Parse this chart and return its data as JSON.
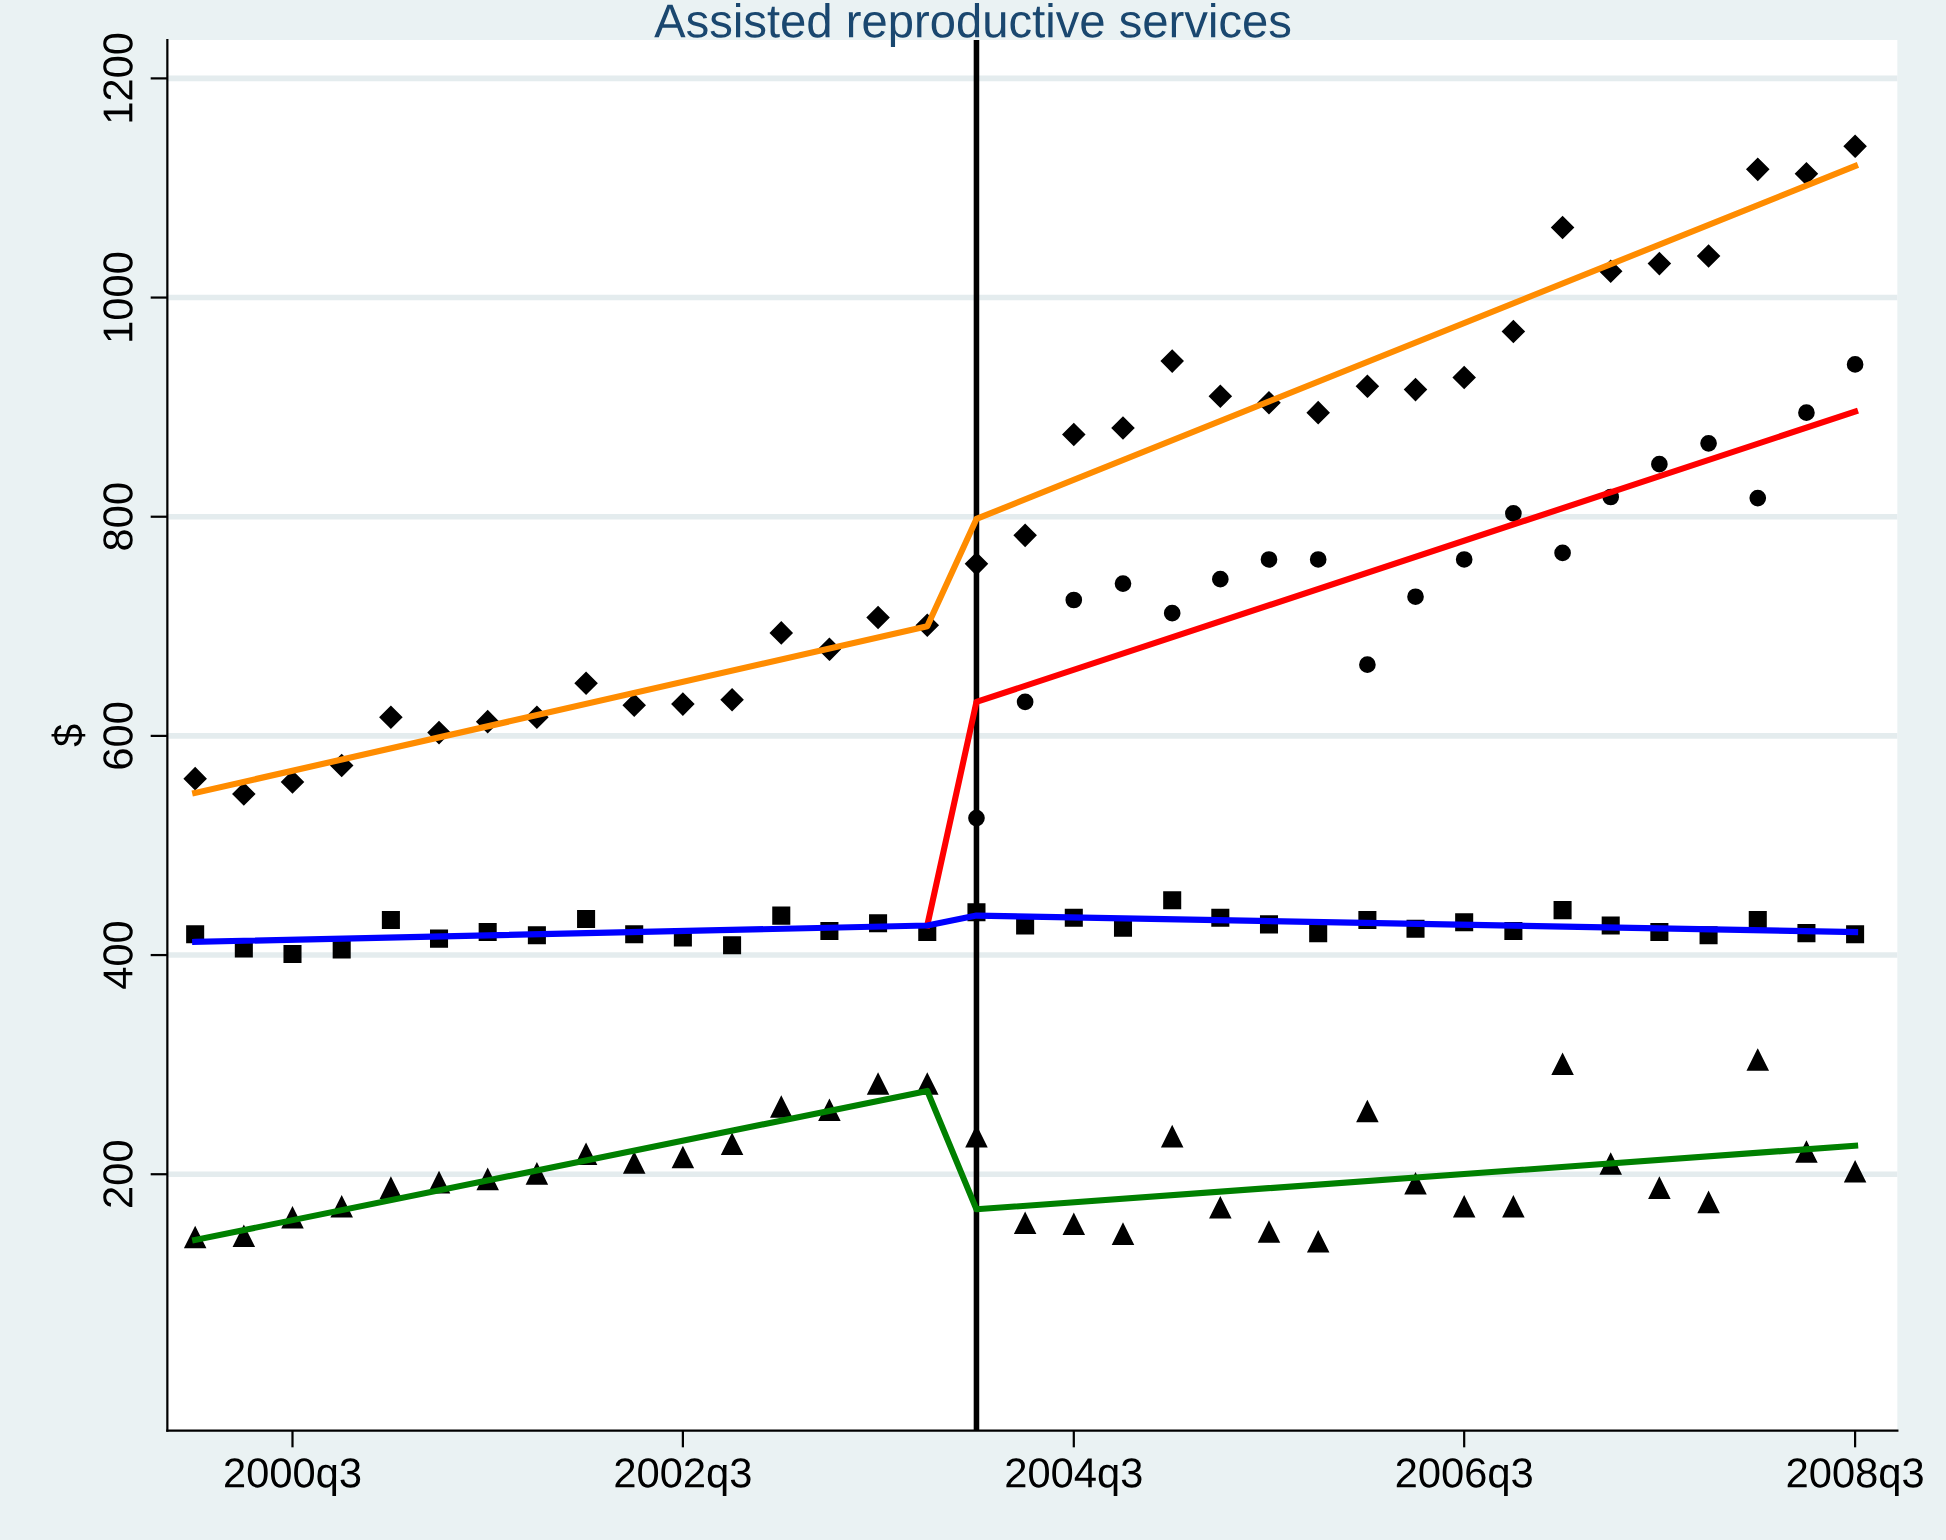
{
  "chart_data": {
    "type": "scatter",
    "title": "Assisted reproductive services",
    "ylabel": "$",
    "xlim": [
      "1999-11-10",
      "2008-09-18"
    ],
    "ylim": [
      -34,
      1235
    ],
    "xticks": [
      {
        "value": "2000-07",
        "label": "2000q3"
      },
      {
        "value": "2002-07",
        "label": "2002q3"
      },
      {
        "value": "2004-07",
        "label": "2004q3"
      },
      {
        "value": "2006-07",
        "label": "2006q3"
      },
      {
        "value": "2008-07",
        "label": "2008q3"
      }
    ],
    "yticks": [
      200,
      400,
      600,
      800,
      1000,
      1200
    ],
    "grid": "y",
    "legend": false,
    "ref_lines": [
      {
        "axis": "x",
        "value": "2004-01",
        "color": "#000000"
      }
    ],
    "x": [
      "2000-01",
      "2000-04",
      "2000-07",
      "2000-10",
      "2001-01",
      "2001-04",
      "2001-07",
      "2001-10",
      "2002-01",
      "2002-04",
      "2002-07",
      "2002-10",
      "2003-01",
      "2003-04",
      "2003-07",
      "2003-10",
      "2004-01",
      "2004-04",
      "2004-07",
      "2004-10",
      "2005-01",
      "2005-04",
      "2005-07",
      "2005-10",
      "2006-01",
      "2006-04",
      "2006-07",
      "2006-10",
      "2007-01",
      "2007-04",
      "2007-07",
      "2007-10",
      "2008-01",
      "2008-04",
      "2008-07"
    ],
    "series": [
      {
        "marker": "diamond",
        "color": "#000000",
        "values": [
          561,
          547,
          558,
          573,
          617,
          603,
          613,
          617,
          648,
          628,
          629,
          633,
          694,
          679,
          708,
          701,
          757,
          783,
          875,
          881,
          942,
          910,
          904,
          895,
          919,
          916,
          927,
          969,
          1064,
          1024,
          1031,
          1038,
          1117,
          1113,
          1138
        ]
      },
      {
        "marker": "circle",
        "color": "#000000",
        "values": [
          null,
          null,
          null,
          null,
          null,
          null,
          null,
          null,
          null,
          null,
          null,
          null,
          null,
          null,
          null,
          null,
          525,
          631,
          724,
          739,
          712,
          743,
          761,
          761,
          665,
          727,
          761,
          803,
          767,
          818,
          848,
          867,
          817,
          895,
          939
        ]
      },
      {
        "marker": "square",
        "color": "#000000",
        "values": [
          419,
          406,
          401,
          405,
          432,
          415,
          421,
          418,
          433,
          419,
          416,
          409,
          436,
          422,
          429,
          421,
          439,
          427,
          434,
          425,
          450,
          434,
          428,
          420,
          432,
          424,
          430,
          422,
          441,
          427,
          421,
          418,
          432,
          420,
          419
        ]
      },
      {
        "marker": "triangle",
        "color": "#000000",
        "values": [
          142,
          143,
          160,
          170,
          187,
          192,
          195,
          200,
          218,
          210,
          215,
          227,
          261,
          258,
          282,
          282,
          234,
          155,
          154,
          145,
          234,
          169,
          147,
          138,
          257,
          191,
          170,
          170,
          300,
          209,
          187,
          174,
          304,
          220,
          202
        ]
      },
      {
        "type": "line",
        "marker": "none",
        "color": "#ff8c00",
        "x": [
          "2000-01",
          "2003-10",
          "2004-01",
          "2008-07"
        ],
        "values": [
          548,
          700,
          798,
          1120
        ]
      },
      {
        "type": "line",
        "marker": "none",
        "color": "#ff0000",
        "x": [
          "2003-10",
          "2004-01",
          "2008-07"
        ],
        "values": [
          427,
          631,
          896
        ]
      },
      {
        "type": "line",
        "marker": "none",
        "color": "#0000ff",
        "x": [
          "2000-01",
          "2003-10",
          "2004-01",
          "2008-07"
        ],
        "values": [
          412,
          427,
          436,
          421
        ]
      },
      {
        "type": "line",
        "marker": "none",
        "color": "#008000",
        "x": [
          "2000-01",
          "2003-10",
          "2004-01",
          "2008-07"
        ],
        "values": [
          140,
          276,
          168,
          226
        ]
      }
    ]
  }
}
